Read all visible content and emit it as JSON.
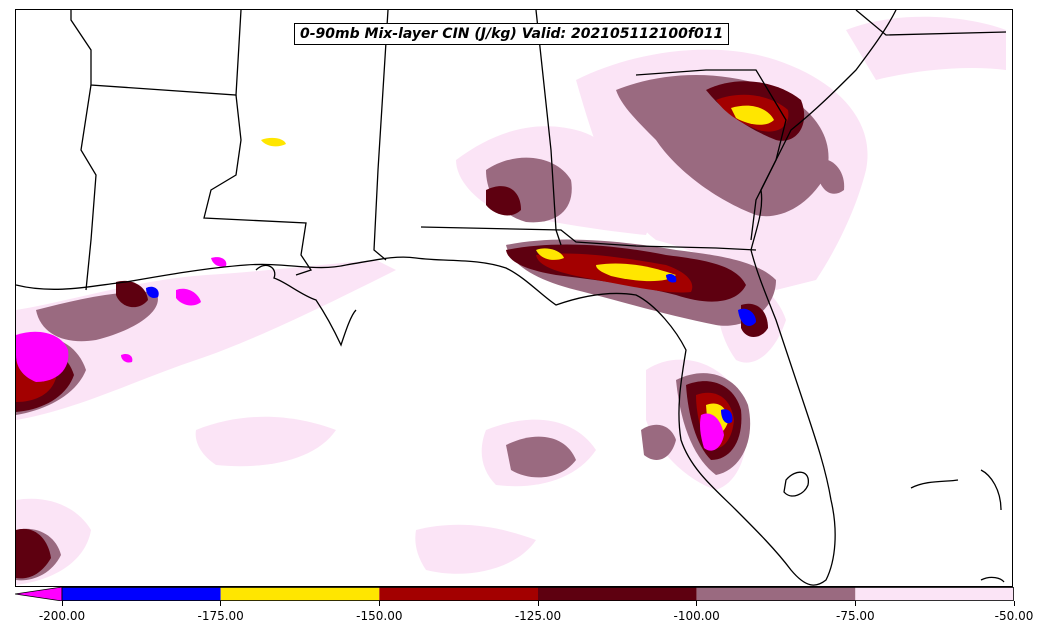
{
  "title": "0-90mb Mix-layer CIN (J/kg) Valid: 2021051121 00f011",
  "colorbar": {
    "extend": "min",
    "levels": [
      -200,
      -175,
      -150,
      -125,
      -100,
      -75,
      -50
    ],
    "colors": [
      "#ff00ff",
      "#0000ff",
      "#ffe600",
      "#a30000",
      "#5e0010",
      "#9a6a80",
      "#fbe4f6"
    ],
    "tick_labels": [
      "-200.00",
      "-175.00",
      "-150.00",
      "-125.00",
      "-100.00",
      "-75.00",
      "-50.00"
    ]
  },
  "palette": {
    "under": "#ff00ff",
    "lvl_175": "#0000ff",
    "lvl_150": "#ffe600",
    "lvl_125": "#a30000",
    "lvl_100": "#5e0010",
    "lvl_75": "#9a6a80",
    "lvl_50": "#fbe4f6"
  }
}
